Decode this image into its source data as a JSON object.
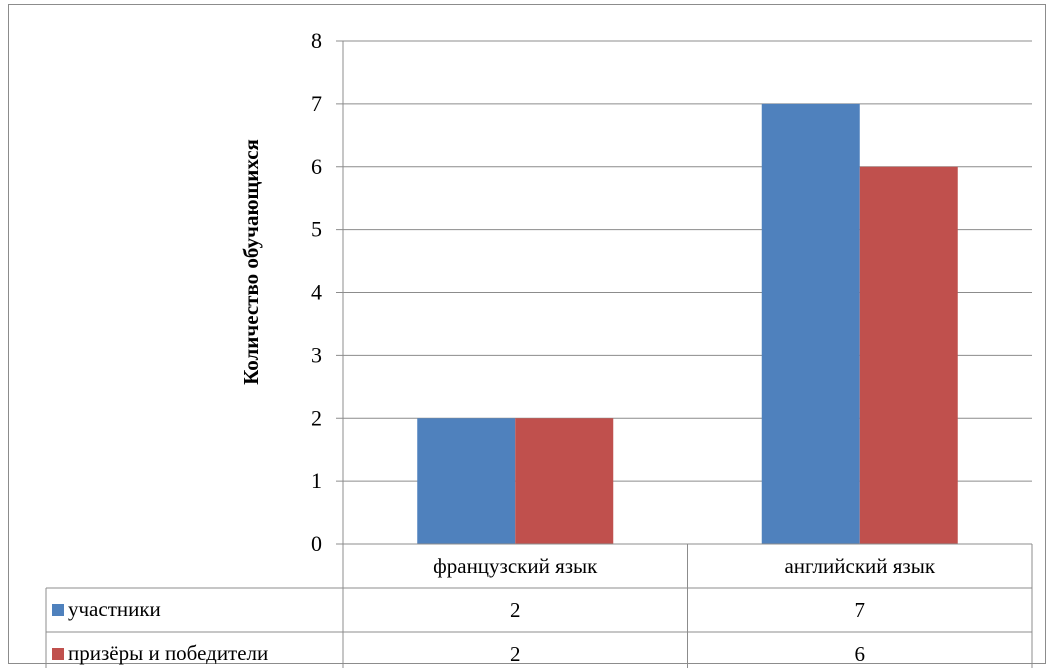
{
  "chart_data": {
    "type": "bar",
    "title": "",
    "xlabel": "",
    "ylabel": "Количество обучающихся",
    "ylim": [
      0,
      8
    ],
    "yticks": [
      0,
      1,
      2,
      3,
      4,
      5,
      6,
      7,
      8
    ],
    "grid": true,
    "legend_placement": "data-table",
    "categories": [
      "французский язык",
      "английский язык"
    ],
    "series": [
      {
        "name": "участники",
        "values": [
          2,
          7
        ],
        "color": "#4f81bd"
      },
      {
        "name": "призёры и победители",
        "values": [
          2,
          6
        ],
        "color": "#c0504d"
      }
    ]
  }
}
